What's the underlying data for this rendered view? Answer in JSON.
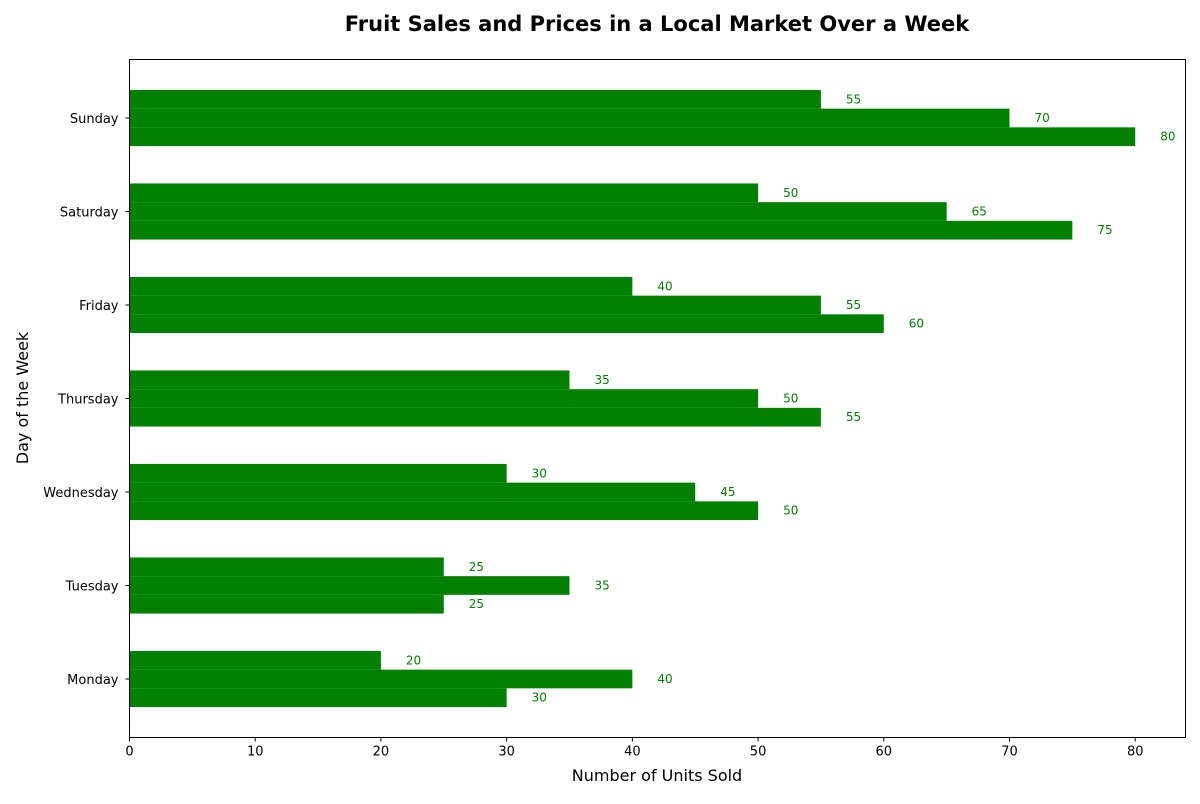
{
  "chart_data": {
    "type": "bar",
    "orientation": "horizontal",
    "title": "Fruit Sales and Prices in a Local Market Over a Week",
    "xlabel": "Number of Units Sold",
    "ylabel": "Day of the Week",
    "categories": [
      "Monday",
      "Tuesday",
      "Wednesday",
      "Thursday",
      "Friday",
      "Saturday",
      "Sunday"
    ],
    "series": [
      {
        "values": [
          20,
          25,
          30,
          35,
          40,
          50,
          55
        ]
      },
      {
        "values": [
          40,
          35,
          45,
          50,
          55,
          65,
          70
        ]
      },
      {
        "values": [
          30,
          25,
          50,
          55,
          60,
          75,
          80
        ]
      }
    ],
    "xlim": [
      0,
      84
    ],
    "xticks": [
      0,
      10,
      20,
      30,
      40,
      50,
      60,
      70,
      80
    ],
    "bar_color": "#008000",
    "label_color": "#008000",
    "grid": false,
    "legend": "none"
  }
}
